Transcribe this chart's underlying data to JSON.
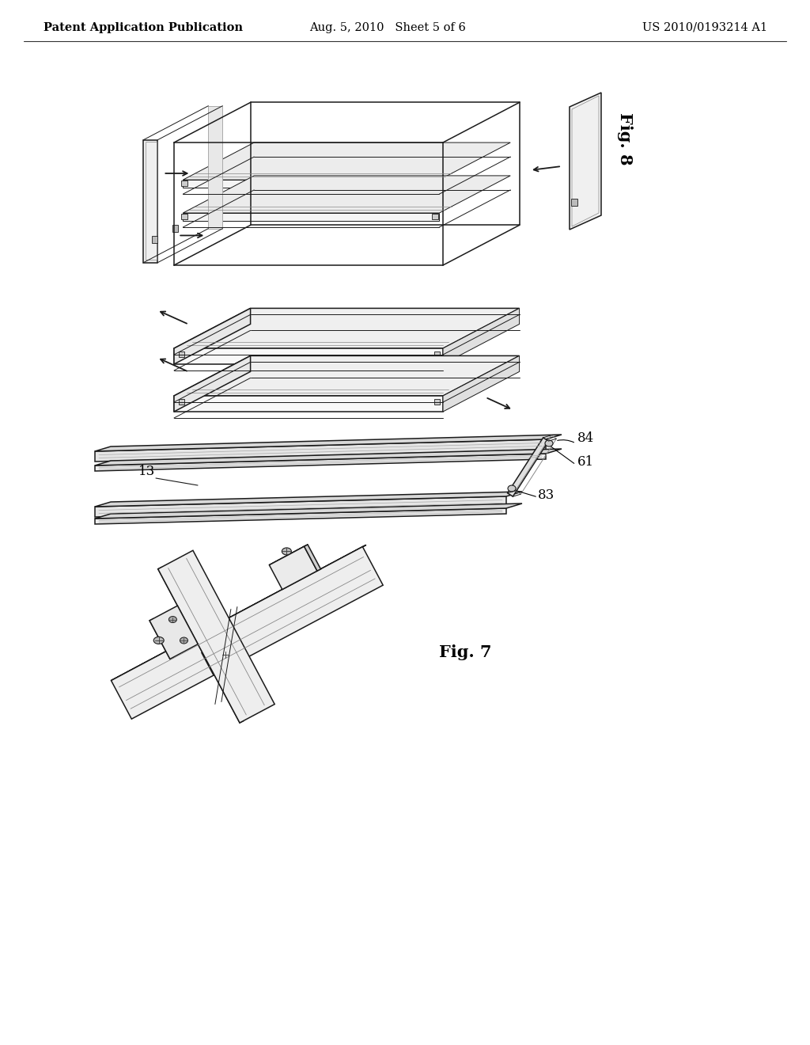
{
  "background_color": "#ffffff",
  "header_left": "Patent Application Publication",
  "header_center": "Aug. 5, 2010   Sheet 5 of 6",
  "header_right": "US 2010/0193214 A1",
  "header_fontsize": 10.5,
  "fig8_label": "Fig. 8",
  "fig7_label": "Fig. 7",
  "line_color": "#1a1a1a",
  "label_color": "#000000",
  "label_fontsize": 12,
  "fig_label_fontsize": 15
}
